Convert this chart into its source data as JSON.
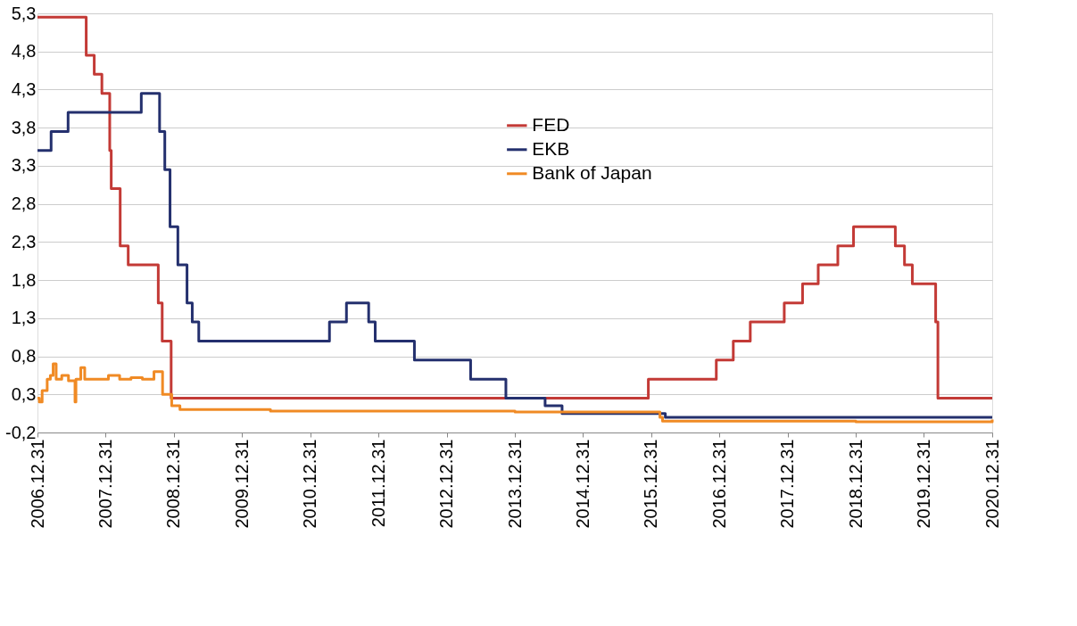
{
  "chart_data": {
    "type": "step",
    "xlim": [
      "2006-12-31",
      "2020-12-31"
    ],
    "xticks": [
      {
        "value": "2006-12-31",
        "label": "2006.12.31"
      },
      {
        "value": "2007-12-31",
        "label": "2007.12.31"
      },
      {
        "value": "2008-12-31",
        "label": "2008.12.31"
      },
      {
        "value": "2009-12-31",
        "label": "2009.12.31"
      },
      {
        "value": "2010-12-31",
        "label": "2010.12.31"
      },
      {
        "value": "2011-12-31",
        "label": "2011.12.31"
      },
      {
        "value": "2012-12-31",
        "label": "2012.12.31"
      },
      {
        "value": "2013-12-31",
        "label": "2013.12.31"
      },
      {
        "value": "2014-12-31",
        "label": "2014.12.31"
      },
      {
        "value": "2015-12-31",
        "label": "2015.12.31"
      },
      {
        "value": "2016-12-31",
        "label": "2016.12.31"
      },
      {
        "value": "2017-12-31",
        "label": "2017.12.31"
      },
      {
        "value": "2018-12-31",
        "label": "2018.12.31"
      },
      {
        "value": "2019-12-31",
        "label": "2019.12.31"
      },
      {
        "value": "2020-12-31",
        "label": "2020.12.31"
      }
    ],
    "ylim": [
      -0.2,
      5.3
    ],
    "yticks": [
      {
        "value": -0.2,
        "label": "-0,2"
      },
      {
        "value": 0.3,
        "label": "0,3"
      },
      {
        "value": 0.8,
        "label": "0,8"
      },
      {
        "value": 1.3,
        "label": "1,3"
      },
      {
        "value": 1.8,
        "label": "1,8"
      },
      {
        "value": 2.3,
        "label": "2,3"
      },
      {
        "value": 2.8,
        "label": "2,8"
      },
      {
        "value": 3.3,
        "label": "3,3"
      },
      {
        "value": 3.8,
        "label": "3,8"
      },
      {
        "value": 4.3,
        "label": "4,3"
      },
      {
        "value": 4.8,
        "label": "4,8"
      },
      {
        "value": 5.3,
        "label": "5,3"
      }
    ],
    "grid": "y",
    "legend": "top",
    "series": [
      {
        "name": "FED",
        "color": "#c33a36",
        "x": [
          "2006-12-31",
          "2007-09-18",
          "2007-10-31",
          "2007-12-11",
          "2008-01-22",
          "2008-01-30",
          "2008-03-18",
          "2008-04-30",
          "2008-10-08",
          "2008-10-29",
          "2008-12-16",
          "2015-12-16",
          "2016-12-14",
          "2017-03-15",
          "2017-06-14",
          "2017-12-13",
          "2018-03-21",
          "2018-06-13",
          "2018-09-26",
          "2018-12-19",
          "2019-07-31",
          "2019-09-18",
          "2019-10-30",
          "2020-03-03",
          "2020-03-15",
          "2020-12-31"
        ],
        "values": [
          5.25,
          4.75,
          4.5,
          4.25,
          3.5,
          3.0,
          2.25,
          2.0,
          1.5,
          1.0,
          0.25,
          0.5,
          0.75,
          1.0,
          1.25,
          1.5,
          1.75,
          2.0,
          2.25,
          2.5,
          2.25,
          2.0,
          1.75,
          1.25,
          0.25,
          0.25
        ]
      },
      {
        "name": "EKB",
        "color": "#24306e",
        "x": [
          "2006-12-31",
          "2007-03-14",
          "2007-06-13",
          "2008-07-09",
          "2008-10-15",
          "2008-11-12",
          "2008-12-10",
          "2009-01-21",
          "2009-03-11",
          "2009-04-08",
          "2009-05-13",
          "2011-04-13",
          "2011-07-13",
          "2011-11-09",
          "2011-12-14",
          "2012-07-11",
          "2013-05-08",
          "2013-11-13",
          "2014-06-11",
          "2014-09-10",
          "2016-03-16",
          "2020-12-31"
        ],
        "values": [
          3.5,
          3.75,
          4.0,
          4.25,
          3.75,
          3.25,
          2.5,
          2.0,
          1.5,
          1.25,
          1.0,
          1.25,
          1.5,
          1.25,
          1.0,
          0.75,
          0.5,
          0.25,
          0.15,
          0.05,
          0.0,
          0.0
        ]
      },
      {
        "name": "Bank of Japan",
        "color": "#f08a24",
        "x": [
          "2006-12-31",
          "2007-01-10",
          "2007-01-25",
          "2007-02-21",
          "2007-03-10",
          "2007-03-25",
          "2007-04-10",
          "2007-05-10",
          "2007-06-15",
          "2007-07-20",
          "2007-07-25",
          "2007-08-20",
          "2007-09-10",
          "2007-11-01",
          "2008-01-15",
          "2008-03-15",
          "2008-05-15",
          "2008-07-15",
          "2008-09-15",
          "2008-10-31",
          "2008-12-19",
          "2009-02-01",
          "2009-06-01",
          "2010-01-01",
          "2010-06-01",
          "2011-01-01",
          "2012-01-01",
          "2013-01-01",
          "2014-01-01",
          "2015-01-01",
          "2016-02-16",
          "2016-03-01",
          "2017-01-01",
          "2019-01-01",
          "2020-12-31"
        ],
        "values": [
          0.25,
          0.2,
          0.35,
          0.5,
          0.55,
          0.7,
          0.5,
          0.55,
          0.48,
          0.2,
          0.5,
          0.65,
          0.5,
          0.5,
          0.55,
          0.5,
          0.52,
          0.5,
          0.6,
          0.3,
          0.15,
          0.1,
          0.1,
          0.1,
          0.08,
          0.08,
          0.08,
          0.08,
          0.07,
          0.07,
          0.0,
          -0.05,
          -0.05,
          -0.06,
          -0.03
        ]
      }
    ]
  }
}
